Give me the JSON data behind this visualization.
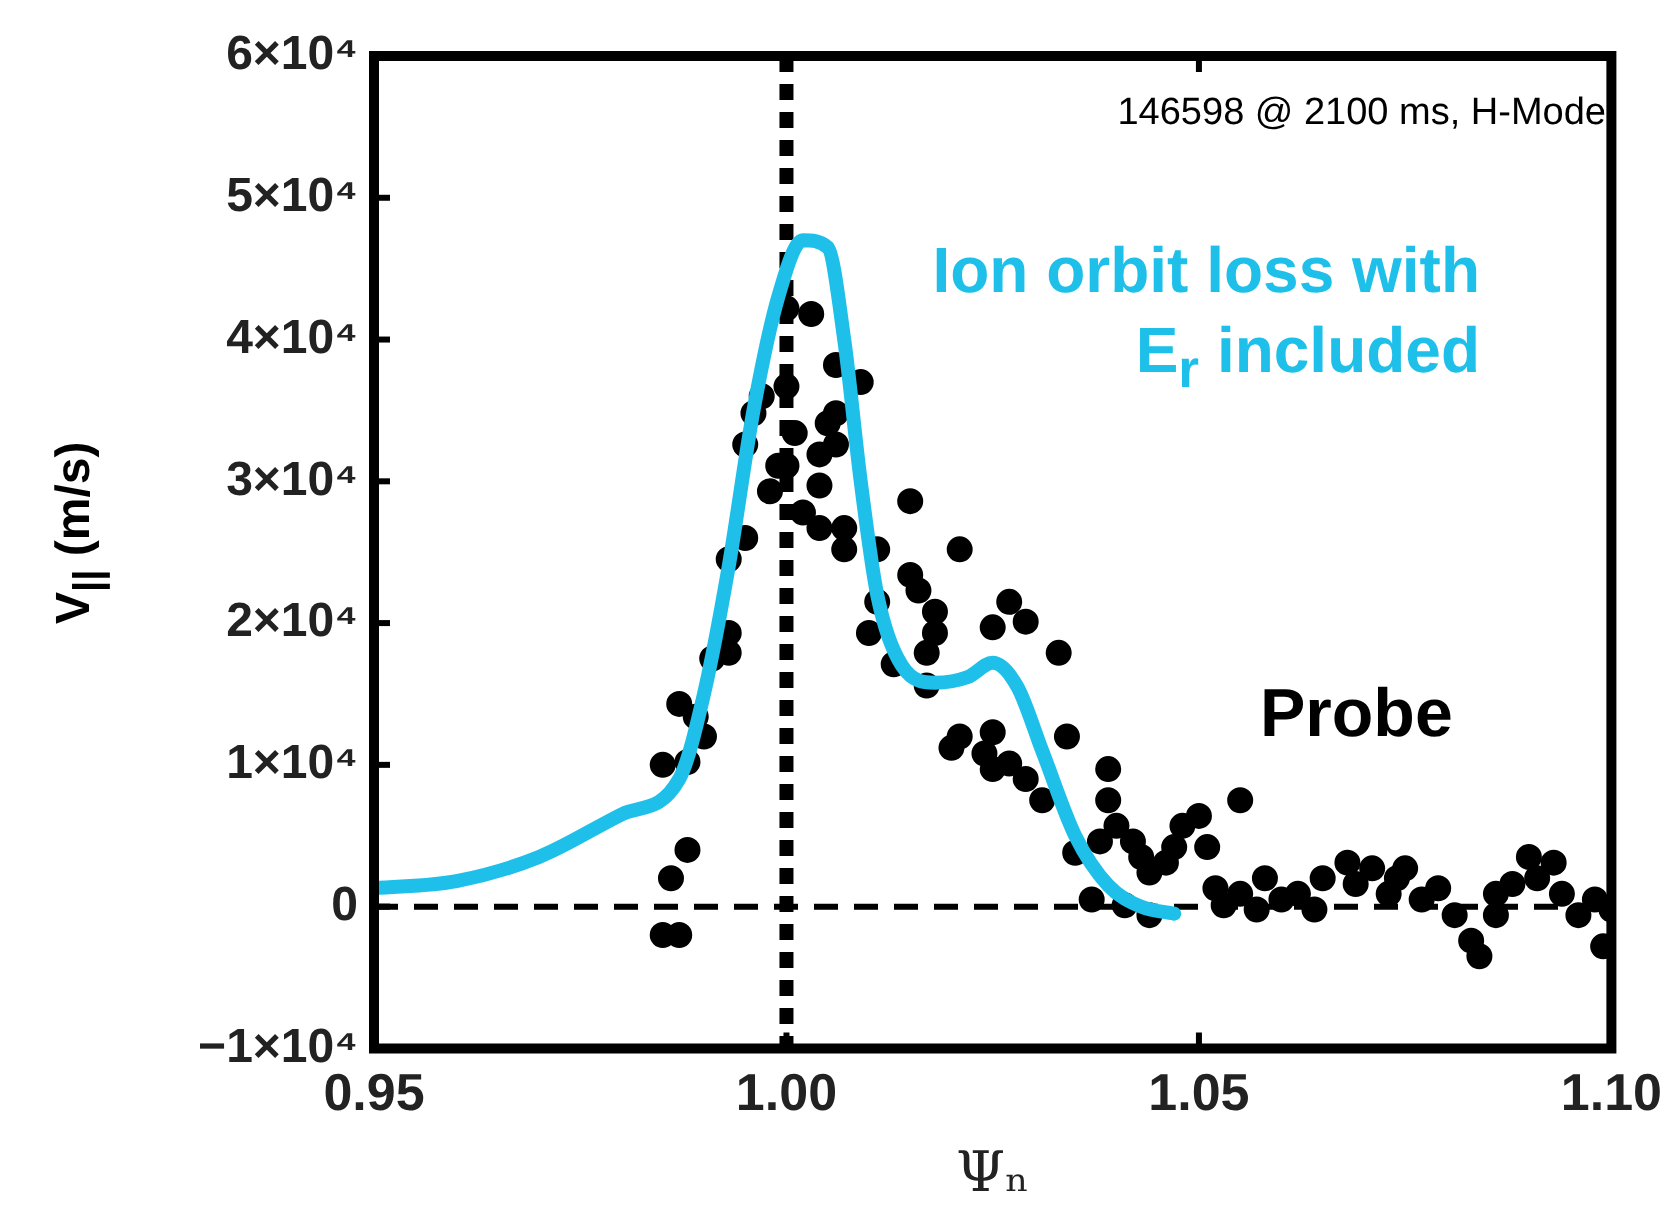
{
  "chart_data": {
    "type": "scatter",
    "xlabel": "Ψₙ",
    "ylabel": "V$_{||}$ (m/s)",
    "xlim": [
      0.95,
      1.1
    ],
    "xticks": [
      0.95,
      {
        "value": 1.0,
        "label": "1.00"
      },
      1.05,
      {
        "value": 1.1,
        "label": "1.10"
      }
    ],
    "ylim": [
      -10000,
      60000
    ],
    "yticks": [
      {
        "value": -10000,
        "label": "−1×10⁴"
      },
      {
        "value": 0,
        "label": "0"
      },
      {
        "value": 10000,
        "label": "1×10⁴"
      },
      {
        "value": 20000,
        "label": "2×10⁴"
      },
      {
        "value": 30000,
        "label": "3×10⁴"
      },
      {
        "value": 40000,
        "label": "4×10⁴"
      },
      {
        "value": 50000,
        "label": "5×10⁴"
      },
      {
        "value": 60000,
        "label": "6×10⁴"
      }
    ],
    "grid": false,
    "legend": false,
    "marker": "circle",
    "annotations": [
      "146598 @ 2100 ms, H-Mode"
    ],
    "ref_lines": [
      {
        "axis": "x",
        "value": 1.0,
        "color": "#000000",
        "line_style": "dotted"
      },
      {
        "axis": "y",
        "value": 0,
        "color": "#000000",
        "line_style": "dashed"
      }
    ],
    "series": [
      {
        "name": "Probe",
        "color": "#000000",
        "x": [
          0.985,
          0.987,
          0.986,
          0.988,
          0.985,
          0.988,
          0.987,
          0.989,
          0.99,
          0.991,
          0.993,
          0.993,
          0.993,
          0.995,
          0.996,
          0.997,
          0.995,
          0.998,
          0.999,
          1.0,
          1.003,
          1.0,
          1.001,
          1.0,
          1.002,
          1.004,
          1.006,
          1.004,
          1.005,
          1.006,
          1.006,
          1.009,
          1.007,
          1.007,
          1.004,
          1.011,
          1.015,
          1.015,
          1.016,
          1.011,
          1.01,
          1.018,
          1.018,
          1.017,
          1.013,
          1.017,
          1.021,
          1.025,
          1.027,
          1.029,
          1.033,
          1.02,
          1.021,
          1.024,
          1.025,
          1.025,
          1.027,
          1.029,
          1.034,
          1.031,
          1.039,
          1.039,
          1.035,
          1.038,
          1.04,
          1.042,
          1.037,
          1.041,
          1.043,
          1.044,
          1.046,
          1.047,
          1.048,
          1.05,
          1.051,
          1.055,
          1.044,
          1.052,
          1.053,
          1.055,
          1.057,
          1.058,
          1.06,
          1.062,
          1.064,
          1.065,
          1.068,
          1.069,
          1.071,
          1.073,
          1.074,
          1.075,
          1.077,
          1.079,
          1.081,
          1.083,
          1.084,
          1.086,
          1.086,
          1.088,
          1.09,
          1.091,
          1.093,
          1.094,
          1.096,
          1.098,
          1.099,
          1.1
        ],
        "values": [
          -2000,
          -2000,
          2000,
          4000,
          10000,
          10200,
          14300,
          13400,
          12000,
          17500,
          17900,
          19300,
          24500,
          26000,
          34800,
          36000,
          32600,
          29300,
          31100,
          42200,
          41800,
          36700,
          33400,
          31100,
          27800,
          29700,
          32600,
          31900,
          34100,
          34800,
          38200,
          37000,
          26700,
          25200,
          26700,
          25200,
          28600,
          23400,
          22300,
          21500,
          19300,
          20800,
          19300,
          17900,
          17100,
          15600,
          25200,
          19700,
          21500,
          20100,
          17900,
          11200,
          12000,
          10800,
          12300,
          9700,
          10100,
          9000,
          12000,
          7500,
          9700,
          7500,
          3800,
          4600,
          5700,
          4600,
          500,
          100,
          3500,
          2400,
          3100,
          4200,
          5700,
          6400,
          4200,
          7500,
          -600,
          1300,
          100,
          900,
          -200,
          2000,
          500,
          900,
          -200,
          2000,
          3100,
          1600,
          2700,
          900,
          2000,
          2700,
          500,
          1300,
          -600,
          -2400,
          -3500,
          -600,
          900,
          1600,
          3500,
          2000,
          3100,
          900,
          -600,
          500,
          -2800,
          -200
        ]
      },
      {
        "name": "Ion orbit loss with E$_{r}$ included",
        "type": "line",
        "color": "#1ec0ea",
        "marker": "none",
        "line_style": "solid",
        "x": [
          0.95,
          0.96,
          0.97,
          0.98,
          0.987,
          0.99,
          0.993,
          0.996,
          0.999,
          1.002,
          1.005,
          1.007,
          1.009,
          1.011,
          1.014,
          1.018,
          1.022,
          1.025,
          1.028,
          1.031,
          1.035,
          1.039,
          1.043,
          1.047
        ],
        "values": [
          1300,
          1800,
          3500,
          6500,
          9000,
          15000,
          24000,
          35000,
          43000,
          47000,
          46500,
          40000,
          30000,
          22000,
          17000,
          15800,
          16200,
          17200,
          15500,
          11000,
          5000,
          1500,
          0,
          -500
        ]
      }
    ]
  }
}
